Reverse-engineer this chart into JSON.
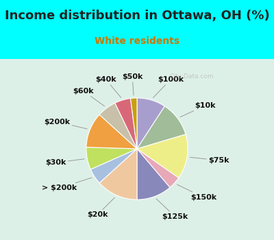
{
  "title": "Income distribution in Ottawa, OH (%)",
  "subtitle": "White residents",
  "bg_cyan": "#00FFFF",
  "bg_chart": "#ddf0e8",
  "labels": [
    "$100k",
    "$10k",
    "$75k",
    "$150k",
    "$125k",
    "$20k",
    "> $200k",
    "$30k",
    "$200k",
    "$60k",
    "$40k",
    "$50k"
  ],
  "values": [
    9,
    11,
    14,
    4,
    11,
    13,
    5,
    7,
    11,
    6,
    5,
    2
  ],
  "colors": [
    "#a89ece",
    "#a0bc98",
    "#eeee88",
    "#e8a8b8",
    "#8888bb",
    "#f0c8a0",
    "#a8c0e0",
    "#c0e060",
    "#f0a040",
    "#c8c0a8",
    "#d86878",
    "#c8a010"
  ],
  "label_fontsize": 8,
  "title_fontsize": 13,
  "subtitle_fontsize": 10,
  "subtitle_color": "#cc7700",
  "title_color": "#222222",
  "watermark": "City-Data.com",
  "startangle": 90,
  "label_color": "#111111"
}
